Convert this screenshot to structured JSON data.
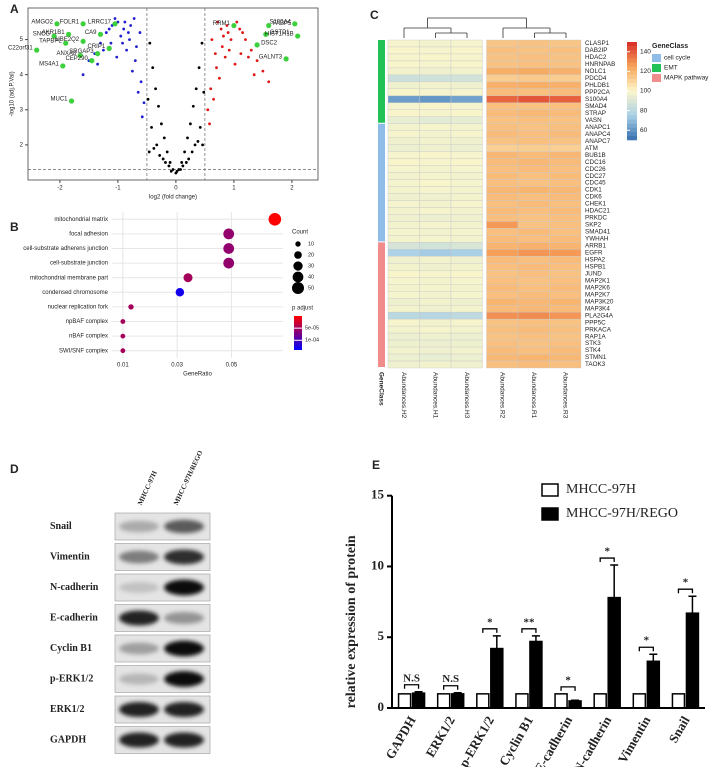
{
  "panels": [
    "A",
    "B",
    "C",
    "D",
    "E"
  ],
  "blot": {
    "columns": [
      "MHCC-97H",
      "MHCC-97H/REGO"
    ],
    "rows": [
      "Snail",
      "Vimentin",
      "N-cadherin",
      "E-cadherin",
      "Cyclin B1",
      "p-ERK1/2",
      "ERK1/2",
      "GAPDH"
    ]
  },
  "chart_data": [
    {
      "type": "scatter",
      "xlabel": "log2 (fold change)",
      "ylabel": "-log10 (adj.P.Val)",
      "xlim": [
        -2.55,
        2.45
      ],
      "ylim": [
        1,
        5.9
      ],
      "xticks": [
        -2,
        -1,
        0,
        1,
        2
      ],
      "yticks": [
        2,
        3,
        4,
        5
      ],
      "thresholds_x": [
        -0.5,
        0.5
      ],
      "threshold_y": 1.3,
      "groups": [
        {
          "color": "#000000",
          "x": [
            -0.45,
            -0.4,
            -0.35,
            -0.3,
            -0.25,
            -0.2,
            -0.15,
            -0.1,
            -0.05,
            0,
            0.05,
            0.1,
            0.15,
            0.2,
            0.25,
            0.3,
            0.35,
            0.4,
            0.45,
            -0.42,
            -0.33,
            -0.22,
            -0.12,
            0.12,
            0.22,
            0.33,
            0.42,
            -0.48,
            0.48,
            -0.38,
            0.38,
            -0.28,
            0.28,
            -0.18,
            0.18,
            -0.08,
            0.08,
            -0.46,
            0.46,
            0.02
          ],
          "y": [
            4.9,
            4.2,
            3.6,
            3.1,
            2.6,
            2.2,
            1.8,
            1.5,
            1.3,
            1.2,
            1.3,
            1.5,
            1.8,
            2.2,
            2.6,
            3.1,
            3.6,
            4.2,
            4.9,
            2.5,
            2.0,
            1.6,
            1.4,
            1.4,
            1.6,
            2.0,
            2.5,
            3.3,
            3.5,
            1.9,
            2.1,
            1.7,
            1.8,
            1.5,
            1.5,
            1.25,
            1.3,
            1.8,
            2.0,
            1.25
          ]
        },
        {
          "color": "#1f1fd0",
          "x": [
            -0.55,
            -0.6,
            -0.7,
            -0.8,
            -0.9,
            -1.0,
            -1.1,
            -1.2,
            -1.3,
            -1.4,
            -1.5,
            -0.65,
            -0.75,
            -0.85,
            -0.95,
            -1.05,
            -1.15,
            -0.58,
            -0.68,
            -0.78,
            -0.88,
            -1.25,
            -1.35,
            -0.62,
            -0.72,
            -0.82,
            -0.92,
            -1.02,
            -1.6,
            -1.12
          ],
          "y": [
            3.2,
            3.8,
            4.4,
            5.0,
            5.3,
            5.5,
            5.4,
            5.2,
            4.9,
            4.6,
            4.4,
            3.5,
            4.1,
            4.7,
            5.1,
            5.6,
            5.3,
            2.8,
            4.8,
            5.4,
            5.5,
            4.7,
            4.3,
            5.2,
            5.6,
            5.2,
            4.9,
            4.5,
            4.0,
            4.9
          ]
        },
        {
          "color": "#e01515",
          "x": [
            0.55,
            0.6,
            0.7,
            0.8,
            0.9,
            1.0,
            1.1,
            1.2,
            1.3,
            1.4,
            1.5,
            0.65,
            0.75,
            0.85,
            0.95,
            1.05,
            1.15,
            0.58,
            0.68,
            0.78,
            0.88,
            1.25,
            1.35,
            0.62,
            0.72,
            0.82,
            0.92,
            1.02,
            1.6,
            1.12
          ],
          "y": [
            3.0,
            3.6,
            4.2,
            4.8,
            5.2,
            5.4,
            5.3,
            5.0,
            4.7,
            4.4,
            4.1,
            3.3,
            3.9,
            4.5,
            5.0,
            5.5,
            5.2,
            2.6,
            4.6,
            5.3,
            5.4,
            4.5,
            4.0,
            5.0,
            5.5,
            5.1,
            4.7,
            4.3,
            3.8,
            4.6
          ]
        }
      ],
      "highlight": {
        "color": "#3cd13c",
        "labels": [
          "AMGO2",
          "FOLR1",
          "LRRC17",
          "SNCG",
          "AKR1B1",
          "CA9",
          "TAPBPL",
          "UBE2Q2",
          "CRIP1",
          "C22orf31",
          "ANXA8",
          "SRGAP3",
          "CEP290",
          "MS4A1",
          "MUC1",
          "RRM1",
          "FABP5",
          "S100A4",
          "GSTP1",
          "HIST1H1B",
          "DSC2",
          "GALNT3"
        ],
        "x": [
          -2.05,
          -1.6,
          -1.05,
          -2.1,
          -1.85,
          -1.3,
          -1.9,
          -1.6,
          -1.15,
          -2.4,
          -1.65,
          -1.35,
          -1.45,
          -1.95,
          -1.8,
          1.0,
          1.6,
          2.05,
          1.55,
          2.1,
          1.4,
          1.9
        ],
        "y": [
          5.45,
          5.45,
          5.45,
          5.1,
          5.15,
          5.15,
          4.9,
          4.95,
          4.75,
          4.7,
          4.55,
          4.6,
          4.4,
          4.25,
          3.25,
          5.4,
          5.4,
          5.45,
          5.15,
          5.1,
          4.85,
          4.45
        ]
      }
    },
    {
      "type": "dot",
      "categories": [
        "mitochondrial matrix",
        "focal adhesion",
        "cell-substrate adherens junction",
        "cell-substrate junction",
        "mitochondrial membrane part",
        "condensed chromosome",
        "nuclear replication fork",
        "npBAF complex",
        "nBAF complex",
        "SWI/SNF complex"
      ],
      "gene_ratio": [
        0.066,
        0.049,
        0.049,
        0.049,
        0.034,
        0.031,
        0.013,
        0.01,
        0.01,
        0.01
      ],
      "count": [
        55,
        40,
        40,
        40,
        28,
        25,
        10,
        8,
        8,
        8
      ],
      "p_adjust": [
        1e-06,
        6e-05,
        6e-05,
        6e-05,
        5e-05,
        0.00013,
        5e-05,
        5e-05,
        5e-05,
        5e-05
      ],
      "xlim": [
        0.006,
        0.069
      ],
      "xticks": [
        0.01,
        0.03,
        0.05
      ],
      "xlabel": "GeneRatio",
      "size_title": "Count",
      "size_ticks": [
        10,
        20,
        30,
        40,
        50
      ],
      "color_title": "p adjust",
      "clim": [
        0,
        0.00014
      ],
      "color_range": [
        "#ff0000",
        "#0000ff"
      ],
      "color_ticks": [
        {
          "value": 5e-05,
          "label": "5e-05"
        },
        {
          "value": 0.0001,
          "label": "1e-04"
        }
      ]
    },
    {
      "type": "heatmap",
      "columns": [
        "Abundances.H2",
        "Abundances.H1",
        "Abundances.H3",
        "Abundances.R2",
        "Abundances.R1",
        "Abundances.R3"
      ],
      "strip_label": "GeneClass",
      "legend_title": "GeneClass",
      "clim": [
        50,
        150
      ],
      "cticks": [
        60,
        80,
        100,
        120,
        140
      ],
      "classes": [
        {
          "name": "cell cycle",
          "color": "#8fbde8"
        },
        {
          "name": "EMT",
          "color": "#22c257"
        },
        {
          "name": "MAPK pathway",
          "color": "#f08c8c"
        }
      ],
      "row_blocks": [
        {
          "class": "EMT",
          "rows": [
            "CLASP1",
            "DAB2IP",
            "HDAC2",
            "HNRNPAB",
            "NOLC1",
            "PDCD4",
            "PHLDB1",
            "PPP2CA",
            "S100A4",
            "SMAD4",
            "STRAP",
            "VASN"
          ],
          "values": [
            [
              98,
              97,
              98,
              115,
              116,
              115
            ],
            [
              99,
              98,
              99,
              117,
              116,
              117
            ],
            [
              98,
              99,
              98,
              116,
              117,
              116
            ],
            [
              99,
              98,
              99,
              116,
              117,
              116
            ],
            [
              97,
              96,
              97,
              122,
              123,
              121
            ],
            [
              85,
              86,
              87,
              113,
              114,
              113
            ],
            [
              96,
              97,
              96,
              121,
              122,
              121
            ],
            [
              99,
              98,
              98,
              118,
              117,
              118
            ],
            [
              62,
              60,
              63,
              138,
              141,
              139
            ],
            [
              98,
              99,
              98,
              117,
              116,
              117
            ],
            [
              99,
              98,
              99,
              118,
              119,
              118
            ],
            [
              94,
              92,
              93,
              116,
              117,
              116
            ]
          ]
        },
        {
          "class": "cell cycle",
          "rows": [
            "ANAPC1",
            "ANAPC4",
            "ANAPC7",
            "ATM",
            "BUB1B",
            "CDC16",
            "CDC26",
            "CDC27",
            "CDC45",
            "CDK1",
            "CDK6",
            "CHEK1",
            "HDAC21",
            "PRKDC",
            "SKP2",
            "SMAD41",
            "YWHAH"
          ],
          "values": [
            [
              97,
              98,
              97,
              117,
              116,
              117
            ],
            [
              98,
              97,
              98,
              118,
              117,
              118
            ],
            [
              96,
              97,
              96,
              116,
              117,
              116
            ],
            [
              95,
              96,
              95,
              112,
              113,
              112
            ],
            [
              98,
              99,
              98,
              119,
              118,
              119
            ],
            [
              99,
              98,
              99,
              118,
              119,
              118
            ],
            [
              98,
              97,
              98,
              117,
              118,
              117
            ],
            [
              97,
              98,
              97,
              118,
              117,
              118
            ],
            [
              98,
              99,
              98,
              117,
              116,
              117
            ],
            [
              97,
              98,
              97,
              119,
              120,
              119
            ],
            [
              96,
              96,
              97,
              118,
              117,
              118
            ],
            [
              98,
              97,
              98,
              117,
              118,
              117
            ],
            [
              97,
              98,
              97,
              118,
              117,
              118
            ],
            [
              96,
              95,
              96,
              117,
              116,
              117
            ],
            [
              97,
              98,
              97,
              127,
              116,
              117
            ],
            [
              98,
              97,
              98,
              117,
              118,
              117
            ],
            [
              97,
              98,
              97,
              118,
              117,
              118
            ]
          ]
        },
        {
          "class": "MAPK pathway",
          "rows": [
            "ARRB1",
            "EGFR",
            "HSPA2",
            "HSPB1",
            "JUND",
            "MAP2K1",
            "MAP2K6",
            "MAP2K7",
            "MAP3K20",
            "MAP3K4",
            "PLA2G4A",
            "PPP5C",
            "PRKACA",
            "RAP1A",
            "STK3",
            "STK4",
            "STMN1",
            "TAOK3"
          ],
          "values": [
            [
              88,
              87,
              89,
              120,
              121,
              120
            ],
            [
              76,
              74,
              75,
              126,
              128,
              127
            ],
            [
              96,
              97,
              96,
              118,
              117,
              118
            ],
            [
              97,
              96,
              97,
              117,
              118,
              117
            ],
            [
              99,
              98,
              99,
              116,
              117,
              116
            ],
            [
              98,
              97,
              98,
              117,
              116,
              117
            ],
            [
              97,
              98,
              97,
              118,
              117,
              118
            ],
            [
              98,
              97,
              98,
              117,
              118,
              117
            ],
            [
              96,
              97,
              96,
              120,
              119,
              120
            ],
            [
              97,
              96,
              97,
              118,
              119,
              118
            ],
            [
              80,
              79,
              81,
              129,
              130,
              128
            ],
            [
              98,
              97,
              98,
              116,
              117,
              116
            ],
            [
              97,
              98,
              97,
              117,
              118,
              117
            ],
            [
              95,
              96,
              95,
              116,
              117,
              116
            ],
            [
              96,
              95,
              96,
              117,
              116,
              117
            ],
            [
              97,
              96,
              97,
              118,
              117,
              118
            ],
            [
              95,
              94,
              95,
              119,
              120,
              119
            ],
            [
              96,
              97,
              96,
              117,
              118,
              117
            ]
          ]
        }
      ]
    },
    {
      "type": "bar",
      "ylabel": "relative expression of protein",
      "ylim": [
        0,
        15
      ],
      "yticks": [
        0,
        5,
        10,
        15
      ],
      "categories": [
        "GAPDH",
        "ERK1/2",
        "p-ERK1/2",
        "Cyclin B1",
        "E-cadherin",
        "N-cadherin",
        "Vimentin",
        "Snail"
      ],
      "series": [
        {
          "name": "MHCC-97H",
          "color": "#ffffff",
          "values": [
            1,
            1,
            1,
            1,
            1,
            1,
            1,
            1
          ]
        },
        {
          "name": "MHCC-97H/REGO",
          "color": "#000000",
          "values": [
            1.05,
            1.0,
            4.2,
            4.7,
            0.5,
            7.8,
            3.3,
            6.7
          ],
          "errors": [
            0.1,
            0.08,
            0.9,
            0.4,
            0.05,
            2.3,
            0.5,
            1.2
          ]
        }
      ],
      "annotations": [
        "N.S",
        "N.S",
        "*",
        "**",
        "*",
        "*",
        "*",
        "*"
      ]
    }
  ]
}
